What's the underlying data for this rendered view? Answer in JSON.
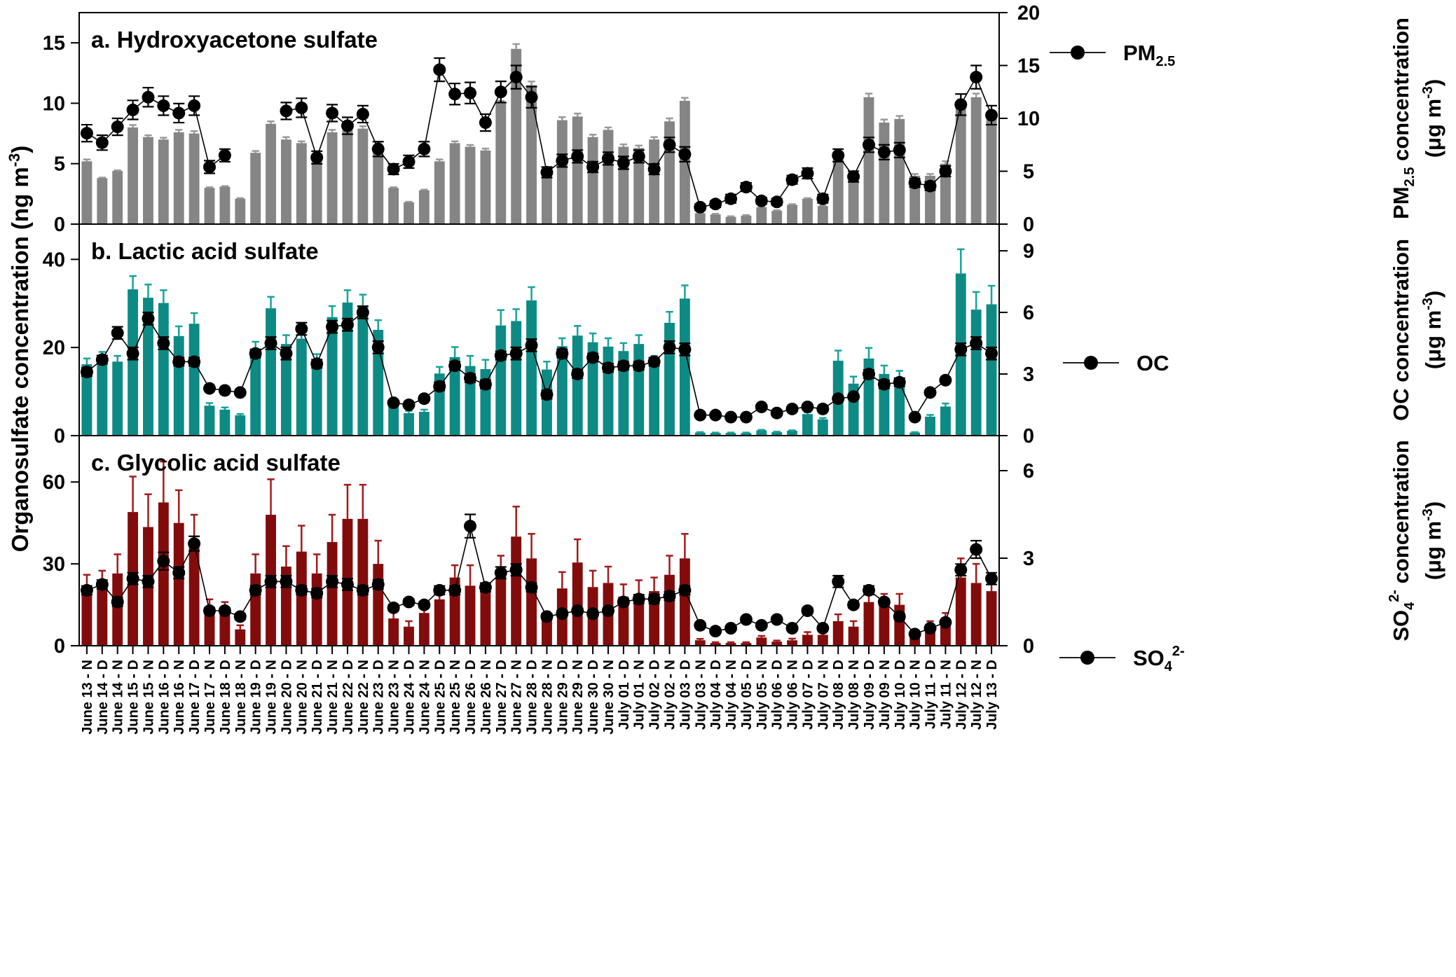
{
  "ylabel_left": "Organosulfate concentration (ng m",
  "ylabel_left_sup": "-3",
  "ylabel_left_close": ")",
  "categories": [
    "June 13 - N",
    "June 14 - D",
    "June 14 - N",
    "June 15 - D",
    "June 15 - N",
    "June 16 - D",
    "June 16 - N",
    "June 17 - D",
    "June 17 - N",
    "June 18 - D",
    "June 18 - N",
    "June 19 - D",
    "June 19 - N",
    "June 20 - D",
    "June 20 - N",
    "June 21 - D",
    "June 21 - N",
    "June 22 - D",
    "June 22 - N",
    "June 23 - D",
    "June 23 - N",
    "June 24 - D",
    "June 24 - N",
    "June 25 - D",
    "June 25 - N",
    "June 26 - D",
    "June 26 - N",
    "June 27 - D",
    "June 27 - N",
    "June 28 - D",
    "June 28 - N",
    "June 29 - D",
    "June 29 - N",
    "June 30 - D",
    "June 30 - N",
    "July 01 - D",
    "July 01 - N",
    "July 02 - D",
    "July 02 - N",
    "July 03 - D",
    "July 03 - N",
    "July 04 - D",
    "July 04 - N",
    "July 05 - D",
    "July 05 - N",
    "July 06 - D",
    "July 06 - N",
    "July 07 - D",
    "July 07 - N",
    "July 08 - D",
    "July 08 - N",
    "July 09 - D",
    "July 09 - N",
    "July 10 - D",
    "July 10 - N",
    "July 11 - D",
    "July 11 - N",
    "July 12 - D",
    "July 12 - N",
    "July 13 - D"
  ],
  "chart_data": [
    {
      "type": "bar",
      "title": "a. Hydroxyacetone sulfate",
      "bar_color": "#858585",
      "err_color": "#9a9a9a",
      "ylim": [
        0,
        17.5
      ],
      "yticks": [
        0,
        5,
        10,
        15
      ],
      "y2lim": [
        0,
        20
      ],
      "y2ticks": [
        0,
        5,
        10,
        15,
        20
      ],
      "y2label_main": "PM",
      "y2label_sub": "2.5",
      "y2label_rest": " concentration",
      "y2unit_main": "(μg m",
      "y2unit_sup": "-3",
      "y2unit_close": ")",
      "legend_main": "PM",
      "legend_sub": "2.5",
      "legend_sup": "",
      "values": [
        5.2,
        3.8,
        4.4,
        8.0,
        7.2,
        7.0,
        7.6,
        7.5,
        3.0,
        3.1,
        2.1,
        5.9,
        8.3,
        7.0,
        6.7,
        5.7,
        7.6,
        8.0,
        7.9,
        6.5,
        3.0,
        1.8,
        2.8,
        5.2,
        6.7,
        6.4,
        6.1,
        10.0,
        14.5,
        11.5,
        4.5,
        8.6,
        8.9,
        7.2,
        7.8,
        6.4,
        6.3,
        7.0,
        8.5,
        10.2,
        0.9,
        0.8,
        0.6,
        0.7,
        1.4,
        1.1,
        1.6,
        2.1,
        1.5,
        5.5,
        4.0,
        10.5,
        8.4,
        8.7,
        4.0,
        4.0,
        5.0,
        10.0,
        10.5,
        8.8
      ],
      "bar_err": [
        0.15,
        0.05,
        0.05,
        0.2,
        0.15,
        0.15,
        0.2,
        0.2,
        0.05,
        0.05,
        0.05,
        0.15,
        0.2,
        0.2,
        0.15,
        0.15,
        0.2,
        0.2,
        0.2,
        0.2,
        0.05,
        0.05,
        0.05,
        0.15,
        0.15,
        0.15,
        0.15,
        0.2,
        0.4,
        0.3,
        0.15,
        0.25,
        0.25,
        0.2,
        0.2,
        0.2,
        0.2,
        0.2,
        0.25,
        0.25,
        0.05,
        0.05,
        0.05,
        0.05,
        0.05,
        0.05,
        0.05,
        0.05,
        0.05,
        0.2,
        0.15,
        0.3,
        0.25,
        0.25,
        0.15,
        0.15,
        0.2,
        0.3,
        0.3,
        0.25
      ],
      "line_values": [
        8.6,
        7.7,
        9.2,
        10.8,
        12.0,
        11.2,
        10.5,
        11.2,
        5.4,
        6.5,
        null,
        null,
        null,
        10.7,
        11.0,
        6.3,
        10.5,
        9.3,
        10.4,
        7.1,
        5.2,
        5.9,
        7.1,
        14.6,
        12.3,
        12.4,
        9.6,
        12.5,
        13.9,
        12.0,
        4.9,
        6.0,
        6.4,
        5.4,
        6.2,
        5.8,
        6.4,
        5.2,
        7.5,
        6.6,
        1.6,
        1.9,
        2.4,
        3.5,
        2.2,
        2.1,
        4.2,
        4.8,
        2.4,
        6.5,
        4.5,
        7.5,
        6.8,
        7.0,
        3.9,
        3.6,
        5.0,
        11.3,
        13.9,
        10.3
      ],
      "line_err": [
        0.8,
        0.7,
        0.8,
        0.9,
        0.9,
        0.9,
        0.9,
        0.9,
        0.6,
        0.6,
        0,
        0,
        0,
        0.8,
        0.9,
        0.6,
        0.8,
        0.8,
        0.8,
        0.7,
        0.5,
        0.6,
        0.7,
        1.1,
        1.0,
        1.0,
        0.8,
        1.0,
        1.1,
        1.0,
        0.5,
        0.6,
        0.6,
        0.5,
        0.6,
        0.6,
        0.6,
        0.5,
        0.7,
        0.7,
        0.3,
        0.3,
        0.4,
        0.4,
        0.3,
        0.3,
        0.4,
        0.5,
        0.4,
        0.6,
        0.5,
        0.7,
        0.7,
        0.7,
        0.4,
        0.4,
        0.5,
        1.0,
        1.1,
        0.9
      ]
    },
    {
      "type": "bar",
      "title": "b. Lactic acid sulfate",
      "bar_color": "#0e8a85",
      "err_color": "#17a39c",
      "ylim": [
        0,
        48
      ],
      "yticks": [
        0,
        20,
        40
      ],
      "y2lim": [
        0,
        10.3
      ],
      "y2ticks": [
        0,
        3,
        6,
        9
      ],
      "y2label_main": "OC concentration",
      "y2label_sub": "",
      "y2label_rest": "",
      "y2unit_main": "(μg m",
      "y2unit_sup": "-3",
      "y2unit_close": ")",
      "legend_main": "OC",
      "legend_sub": "",
      "legend_sup": "",
      "values": [
        16.2,
        17.7,
        16.8,
        33.2,
        31.3,
        30.1,
        22.6,
        25.4,
        6.8,
        5.9,
        4.6,
        19.5,
        28.9,
        20.8,
        22.0,
        17.0,
        26.9,
        30.2,
        29.3,
        24.0,
        7.2,
        5.1,
        5.4,
        14.1,
        17.8,
        15.8,
        15.1,
        25.0,
        26.0,
        30.7,
        15.0,
        20.3,
        22.7,
        21.2,
        20.2,
        19.2,
        20.8,
        16.5,
        25.6,
        31.1,
        0.7,
        0.6,
        0.6,
        0.6,
        1.2,
        0.8,
        1.1,
        4.9,
        3.7,
        17.0,
        11.8,
        17.5,
        14.0,
        12.0,
        0.7,
        4.3,
        6.6,
        36.8,
        28.6,
        29.8
      ],
      "bar_err": [
        1.3,
        1.3,
        1.3,
        3.0,
        3.0,
        2.9,
        2.2,
        2.4,
        0.6,
        0.5,
        0.3,
        1.8,
        2.6,
        2.0,
        2.0,
        1.5,
        2.5,
        2.8,
        2.7,
        2.2,
        0.6,
        0.5,
        0.5,
        1.5,
        2.3,
        2.3,
        2.1,
        3.5,
        2.7,
        3.0,
        1.8,
        1.8,
        2.2,
        2.0,
        1.9,
        1.8,
        2.0,
        1.6,
        2.5,
        3.0,
        0.1,
        0.1,
        0.1,
        0.1,
        0.1,
        0.1,
        0.1,
        0.4,
        0.3,
        2.3,
        1.6,
        2.4,
        1.9,
        2.7,
        0.1,
        0.4,
        0.7,
        5.5,
        4.0,
        4.2
      ],
      "line_values": [
        3.1,
        3.7,
        5.0,
        4.0,
        5.7,
        4.5,
        3.6,
        3.6,
        2.3,
        2.2,
        2.1,
        4.0,
        4.5,
        4.0,
        5.2,
        3.5,
        5.3,
        5.4,
        6.0,
        4.3,
        1.6,
        1.5,
        1.8,
        2.4,
        3.4,
        2.8,
        2.5,
        3.9,
        4.0,
        4.4,
        2.0,
        4.0,
        3.0,
        3.8,
        3.3,
        3.4,
        3.4,
        3.6,
        4.3,
        4.2,
        1.0,
        1.0,
        0.9,
        0.9,
        1.4,
        1.1,
        1.3,
        1.4,
        1.3,
        1.8,
        1.9,
        3.0,
        2.5,
        2.6,
        0.9,
        2.1,
        2.7,
        4.2,
        4.5,
        4.0
      ],
      "line_err": [
        0.2,
        0.2,
        0.3,
        0.3,
        0.3,
        0.3,
        0.2,
        0.2,
        0.1,
        0.1,
        0.1,
        0.2,
        0.3,
        0.3,
        0.3,
        0.2,
        0.3,
        0.3,
        0.3,
        0.3,
        0.1,
        0.1,
        0.1,
        0.2,
        0.2,
        0.2,
        0.2,
        0.2,
        0.3,
        0.3,
        0.2,
        0.2,
        0.2,
        0.2,
        0.2,
        0.2,
        0.2,
        0.2,
        0.3,
        0.3,
        0.1,
        0.1,
        0.1,
        0.1,
        0.1,
        0.1,
        0.1,
        0.1,
        0.1,
        0.1,
        0.1,
        0.2,
        0.2,
        0.2,
        0.1,
        0.1,
        0.1,
        0.3,
        0.3,
        0.3
      ]
    },
    {
      "type": "bar",
      "title": "c. Glycolic acid sulfate",
      "bar_color": "#820c0c",
      "err_color": "#a31a1a",
      "ylim": [
        0,
        77
      ],
      "yticks": [
        0,
        30,
        60
      ],
      "y2lim": [
        0,
        7.2
      ],
      "y2ticks": [
        0,
        3,
        6
      ],
      "y2label_main": "SO",
      "y2label_sub": "4",
      "y2label_rest": "",
      "y2label_sup": "2-",
      "y2label_after": " concentration",
      "y2unit_main": "(μg m",
      "y2unit_sup": "-3",
      "y2unit_close": ")",
      "legend_main": "SO",
      "legend_sub": "4",
      "legend_sup": "2-",
      "values": [
        21.0,
        22.5,
        26.5,
        49.0,
        43.5,
        52.5,
        45.0,
        38.0,
        14.0,
        13.0,
        6.0,
        26.5,
        48.0,
        29.0,
        34.5,
        26.5,
        38.0,
        46.5,
        46.5,
        30.0,
        10.0,
        7.0,
        12.0,
        17.0,
        25.0,
        22.0,
        19.5,
        27.0,
        40.0,
        32.0,
        10.0,
        21.0,
        30.5,
        21.5,
        23.0,
        18.0,
        19.0,
        20.0,
        26.0,
        32.0,
        2.0,
        1.0,
        1.0,
        1.0,
        3.0,
        1.5,
        2.0,
        4.0,
        4.0,
        9.0,
        7.0,
        16.0,
        15.0,
        15.0,
        4.0,
        7.0,
        9.0,
        25.0,
        23.0,
        20.0
      ],
      "bar_err": [
        5.0,
        5.0,
        7.0,
        13.0,
        12.0,
        15.0,
        12.0,
        10.0,
        3.0,
        3.0,
        1.5,
        7.0,
        13.0,
        7.5,
        9.5,
        7.0,
        10.0,
        12.5,
        12.5,
        8.5,
        2.5,
        2.0,
        3.0,
        4.5,
        4.5,
        7.5,
        3.5,
        6.0,
        11.0,
        9.0,
        2.5,
        6.0,
        8.5,
        6.0,
        6.0,
        4.5,
        5.0,
        5.0,
        7.0,
        9.0,
        0.5,
        0.3,
        0.3,
        0.3,
        0.6,
        0.4,
        0.6,
        1.0,
        1.0,
        2.5,
        2.0,
        4.0,
        4.0,
        4.0,
        1.0,
        2.0,
        3.0,
        7.0,
        7.0,
        6.0
      ],
      "line_values": [
        1.9,
        2.1,
        1.5,
        2.3,
        2.2,
        2.9,
        2.5,
        3.5,
        1.2,
        1.2,
        1.0,
        1.9,
        2.2,
        2.2,
        1.9,
        1.8,
        2.2,
        2.1,
        1.9,
        2.1,
        1.3,
        1.5,
        1.4,
        1.9,
        1.9,
        4.1,
        2.0,
        2.5,
        2.6,
        2.0,
        1.0,
        1.1,
        1.2,
        1.1,
        1.2,
        1.5,
        1.6,
        1.6,
        1.7,
        1.9,
        0.7,
        0.5,
        0.6,
        0.9,
        0.7,
        0.9,
        0.6,
        1.2,
        0.6,
        2.2,
        1.4,
        1.9,
        1.5,
        1.0,
        0.4,
        0.6,
        0.8,
        2.6,
        3.3,
        2.3
      ],
      "line_err": [
        0.15,
        0.15,
        0.15,
        0.2,
        0.2,
        0.3,
        0.2,
        0.25,
        0.1,
        0.1,
        0.1,
        0.15,
        0.2,
        0.2,
        0.15,
        0.15,
        0.2,
        0.2,
        0.15,
        0.15,
        0.1,
        0.1,
        0.1,
        0.15,
        0.15,
        0.4,
        0.15,
        0.2,
        0.2,
        0.15,
        0.1,
        0.1,
        0.1,
        0.1,
        0.1,
        0.1,
        0.15,
        0.15,
        0.15,
        0.15,
        0.05,
        0.05,
        0.05,
        0.05,
        0.05,
        0.05,
        0.05,
        0.1,
        0.05,
        0.2,
        0.1,
        0.15,
        0.1,
        0.1,
        0.05,
        0.05,
        0.05,
        0.2,
        0.3,
        0.2
      ]
    }
  ]
}
